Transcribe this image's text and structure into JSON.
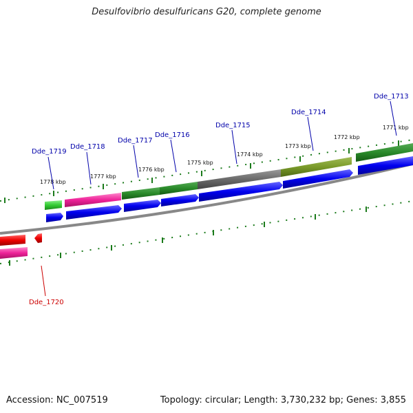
{
  "title": "Desulfovibrio desulfuricans G20, complete genome",
  "footer": {
    "accession": "Accession: NC_007519",
    "summary": "Topology: circular; Length: 3,730,232 bp; Genes: 3,855"
  },
  "colors": {
    "forward_label": "#0000aa",
    "reverse_label": "#cc0000",
    "cds_blue": "#0000ee",
    "cds_red": "#ee0000",
    "backbone": "#888888",
    "tick": "#1a7a1a"
  },
  "kbp_labels": [
    "1778 kbp",
    "1777 kbp",
    "1776 kbp",
    "1775 kbp",
    "1774 kbp",
    "1773 kbp",
    "1772 kbp",
    "1771 kbp"
  ],
  "genes": [
    {
      "name": "Dde_1719",
      "strand": "forward",
      "feature_color": "#44cc44"
    },
    {
      "name": "Dde_1718",
      "strand": "forward",
      "feature_color": "#ee3399"
    },
    {
      "name": "Dde_1717",
      "strand": "forward",
      "feature_color": "#2a8a2a"
    },
    {
      "name": "Dde_1716",
      "strand": "forward",
      "feature_color": "#2a8a2a"
    },
    {
      "name": "Dde_1715",
      "strand": "forward",
      "feature_color": "#707070"
    },
    {
      "name": "Dde_1714",
      "strand": "forward",
      "feature_color": "#7a9a2a"
    },
    {
      "name": "Dde_1713",
      "strand": "forward",
      "feature_color": "#1a7a1a"
    },
    {
      "name": "Dde_1720",
      "strand": "reverse",
      "feature_color": "#ee0000"
    }
  ]
}
